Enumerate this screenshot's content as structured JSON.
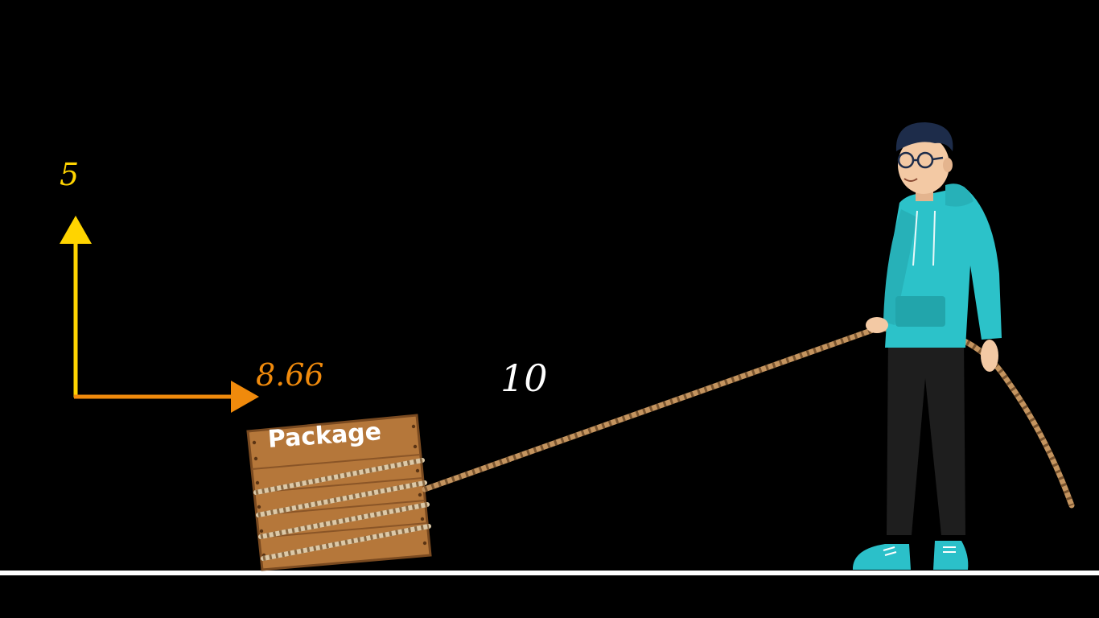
{
  "vector": {
    "vertical_component": "5",
    "horizontal_component": "8.66",
    "resultant_magnitude": "10"
  },
  "package": {
    "label": "Package"
  },
  "colors": {
    "background": "#000000",
    "vertical_arrow": "#ffd400",
    "horizontal_arrow": "#f08a0c",
    "resultant_label": "#ffffff",
    "package_label": "#ffffff",
    "crate_wood": "#b5773a",
    "crate_wood_dark": "#7a4a20",
    "rope": "#c4945f",
    "hoodie": "#2cc2c9",
    "pants": "#1e1e1e",
    "shoes": "#2bc0c9",
    "skin": "#f3c9a4",
    "hair": "#1d2c4a",
    "ground": "#ffffff"
  }
}
